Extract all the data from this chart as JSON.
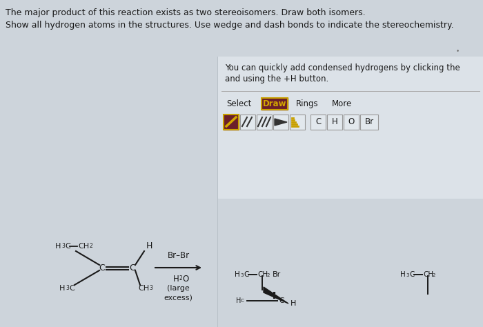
{
  "bg_color": "#cdd4db",
  "panel_bg": "#dce2e8",
  "text_color": "#1a1a1a",
  "line1": "The major product of this reaction exists as two stereoisomers. Draw both isomers.",
  "line2": "Show all hydrogen atoms in the structures. Use wedge and dash bonds to indicate the stereochemistry.",
  "toolbar_text1": "You can quickly add condensed hydrogens by clicking the",
  "toolbar_text2": "and using the +H button.",
  "tab_select": "Select",
  "tab_draw": "Draw",
  "tab_rings": "Rings",
  "tab_more": "More",
  "draw_btn_color": "#6b1f2a",
  "draw_btn_border": "#c8a000",
  "draw_btn_text_color": "#d4a800",
  "elements": [
    "C",
    "H",
    "O",
    "Br"
  ]
}
